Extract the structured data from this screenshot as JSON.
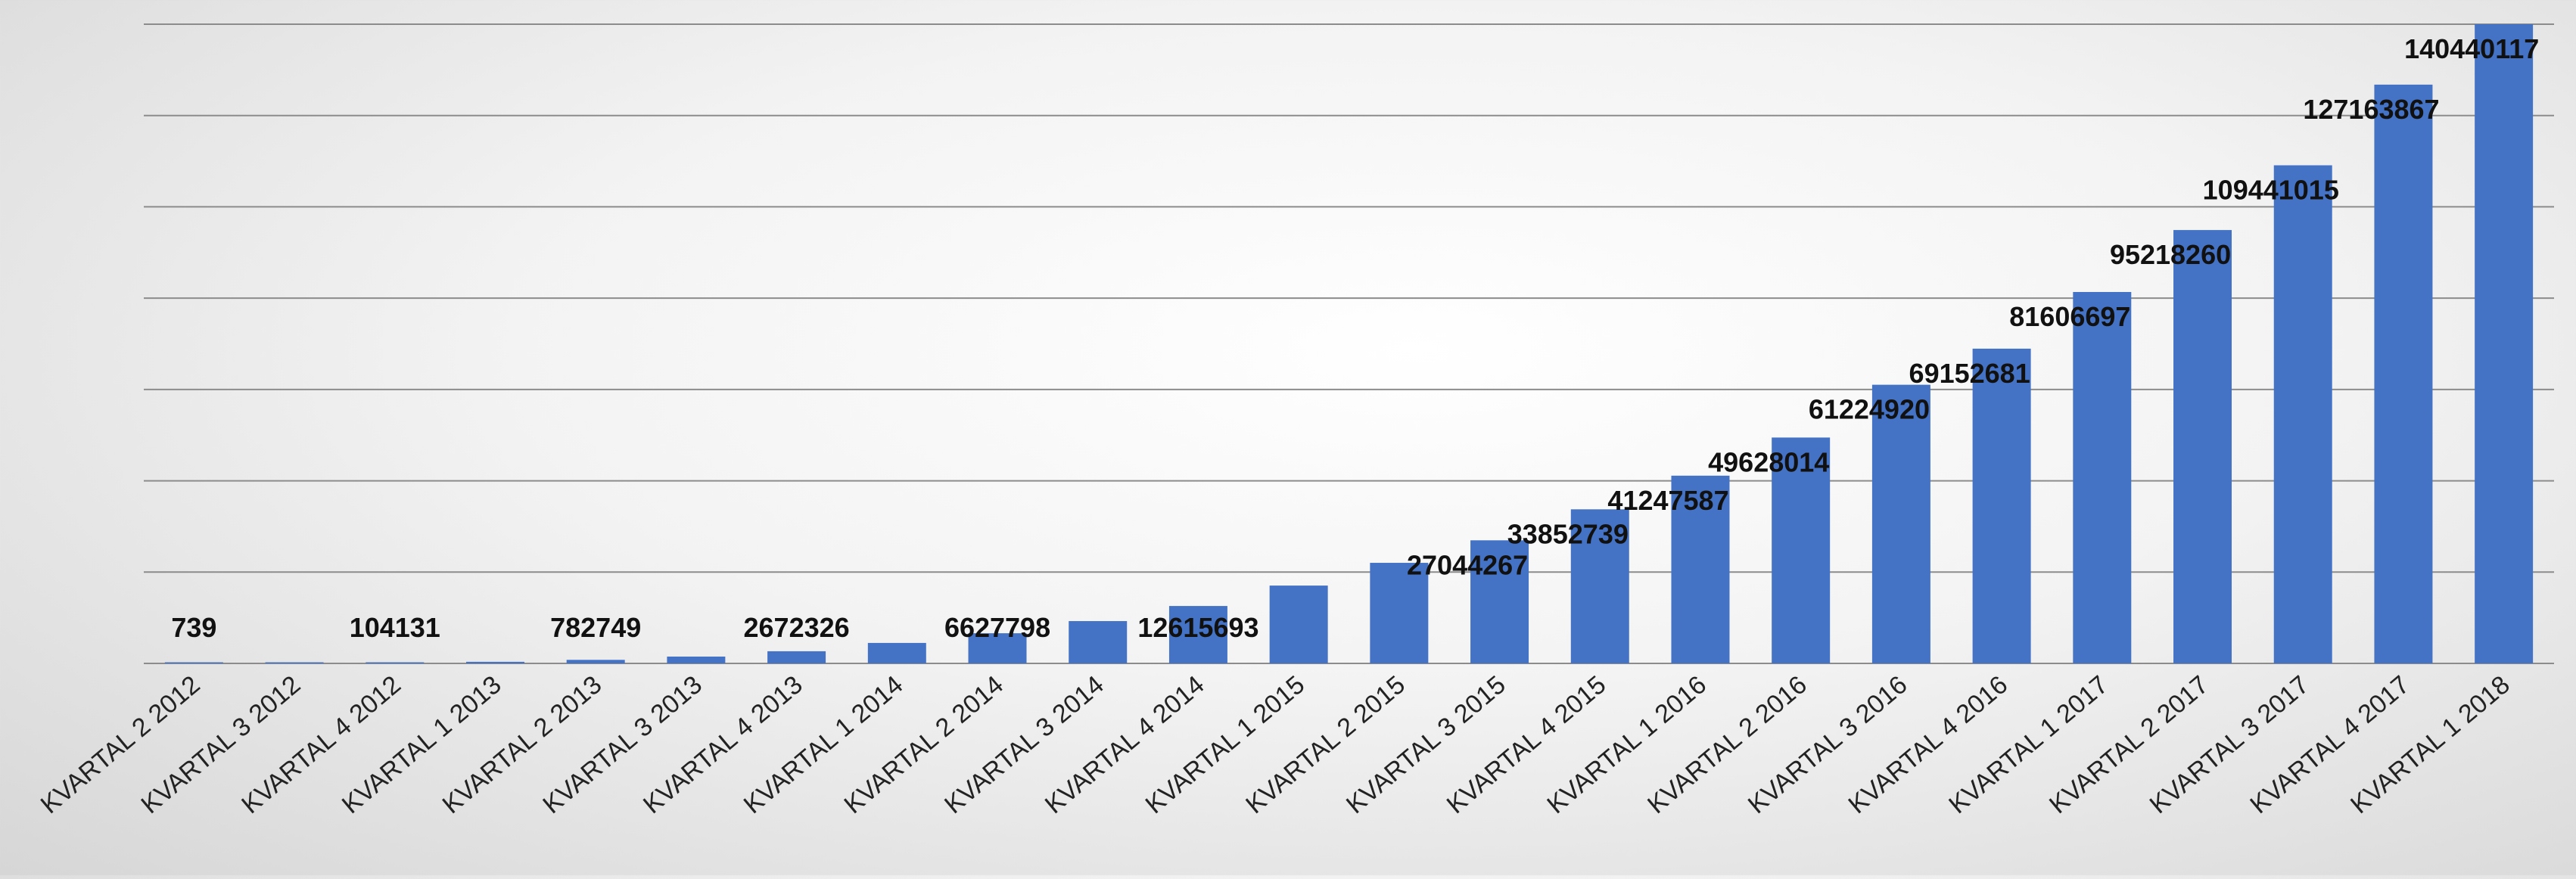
{
  "chart_data": {
    "type": "bar",
    "title": "",
    "xlabel": "",
    "ylabel": "",
    "ylim": [
      0,
      140440117
    ],
    "grid": true,
    "legend": "none",
    "bar_color": "#4472C4",
    "grid_color": "#8c8c8c",
    "categories": [
      "KVARTAL 2 2012",
      "KVARTAL 3 2012",
      "KVARTAL 4 2012",
      "KVARTAL 1 2013",
      "KVARTAL 2 2013",
      "KVARTAL 3 2013",
      "KVARTAL 4 2013",
      "KVARTAL 1 2014",
      "KVARTAL 2 2014",
      "KVARTAL 3 2014",
      "KVARTAL 4 2014",
      "KVARTAL 1 2015",
      "KVARTAL 2 2015",
      "KVARTAL 3 2015",
      "KVARTAL 4 2015",
      "KVARTAL 1 2016",
      "KVARTAL 2 2016",
      "KVARTAL 3 2016",
      "KVARTAL 4 2016",
      "KVARTAL 1 2017",
      "KVARTAL 2 2017",
      "KVARTAL 3 2017",
      "KVARTAL 4 2017",
      "KVARTAL 1 2018"
    ],
    "values": [
      739,
      35000,
      104131,
      350000,
      782749,
      1500000,
      2672326,
      4500000,
      6627798,
      9300000,
      12615693,
      17100000,
      22100000,
      27044267,
      33852739,
      41247587,
      49628014,
      61224920,
      69152681,
      81606697,
      95218260,
      109441015,
      127163867,
      140440117
    ],
    "data_labels": [
      "739",
      "",
      "104131",
      "",
      "782749",
      "",
      "2672326",
      "",
      "6627798",
      "",
      "12615693",
      "",
      "",
      "27044267",
      "33852739",
      "41247587",
      "49628014",
      "61224920",
      "69152681",
      "81606697",
      "95218260",
      "109441015",
      "127163867",
      "140440117"
    ]
  }
}
